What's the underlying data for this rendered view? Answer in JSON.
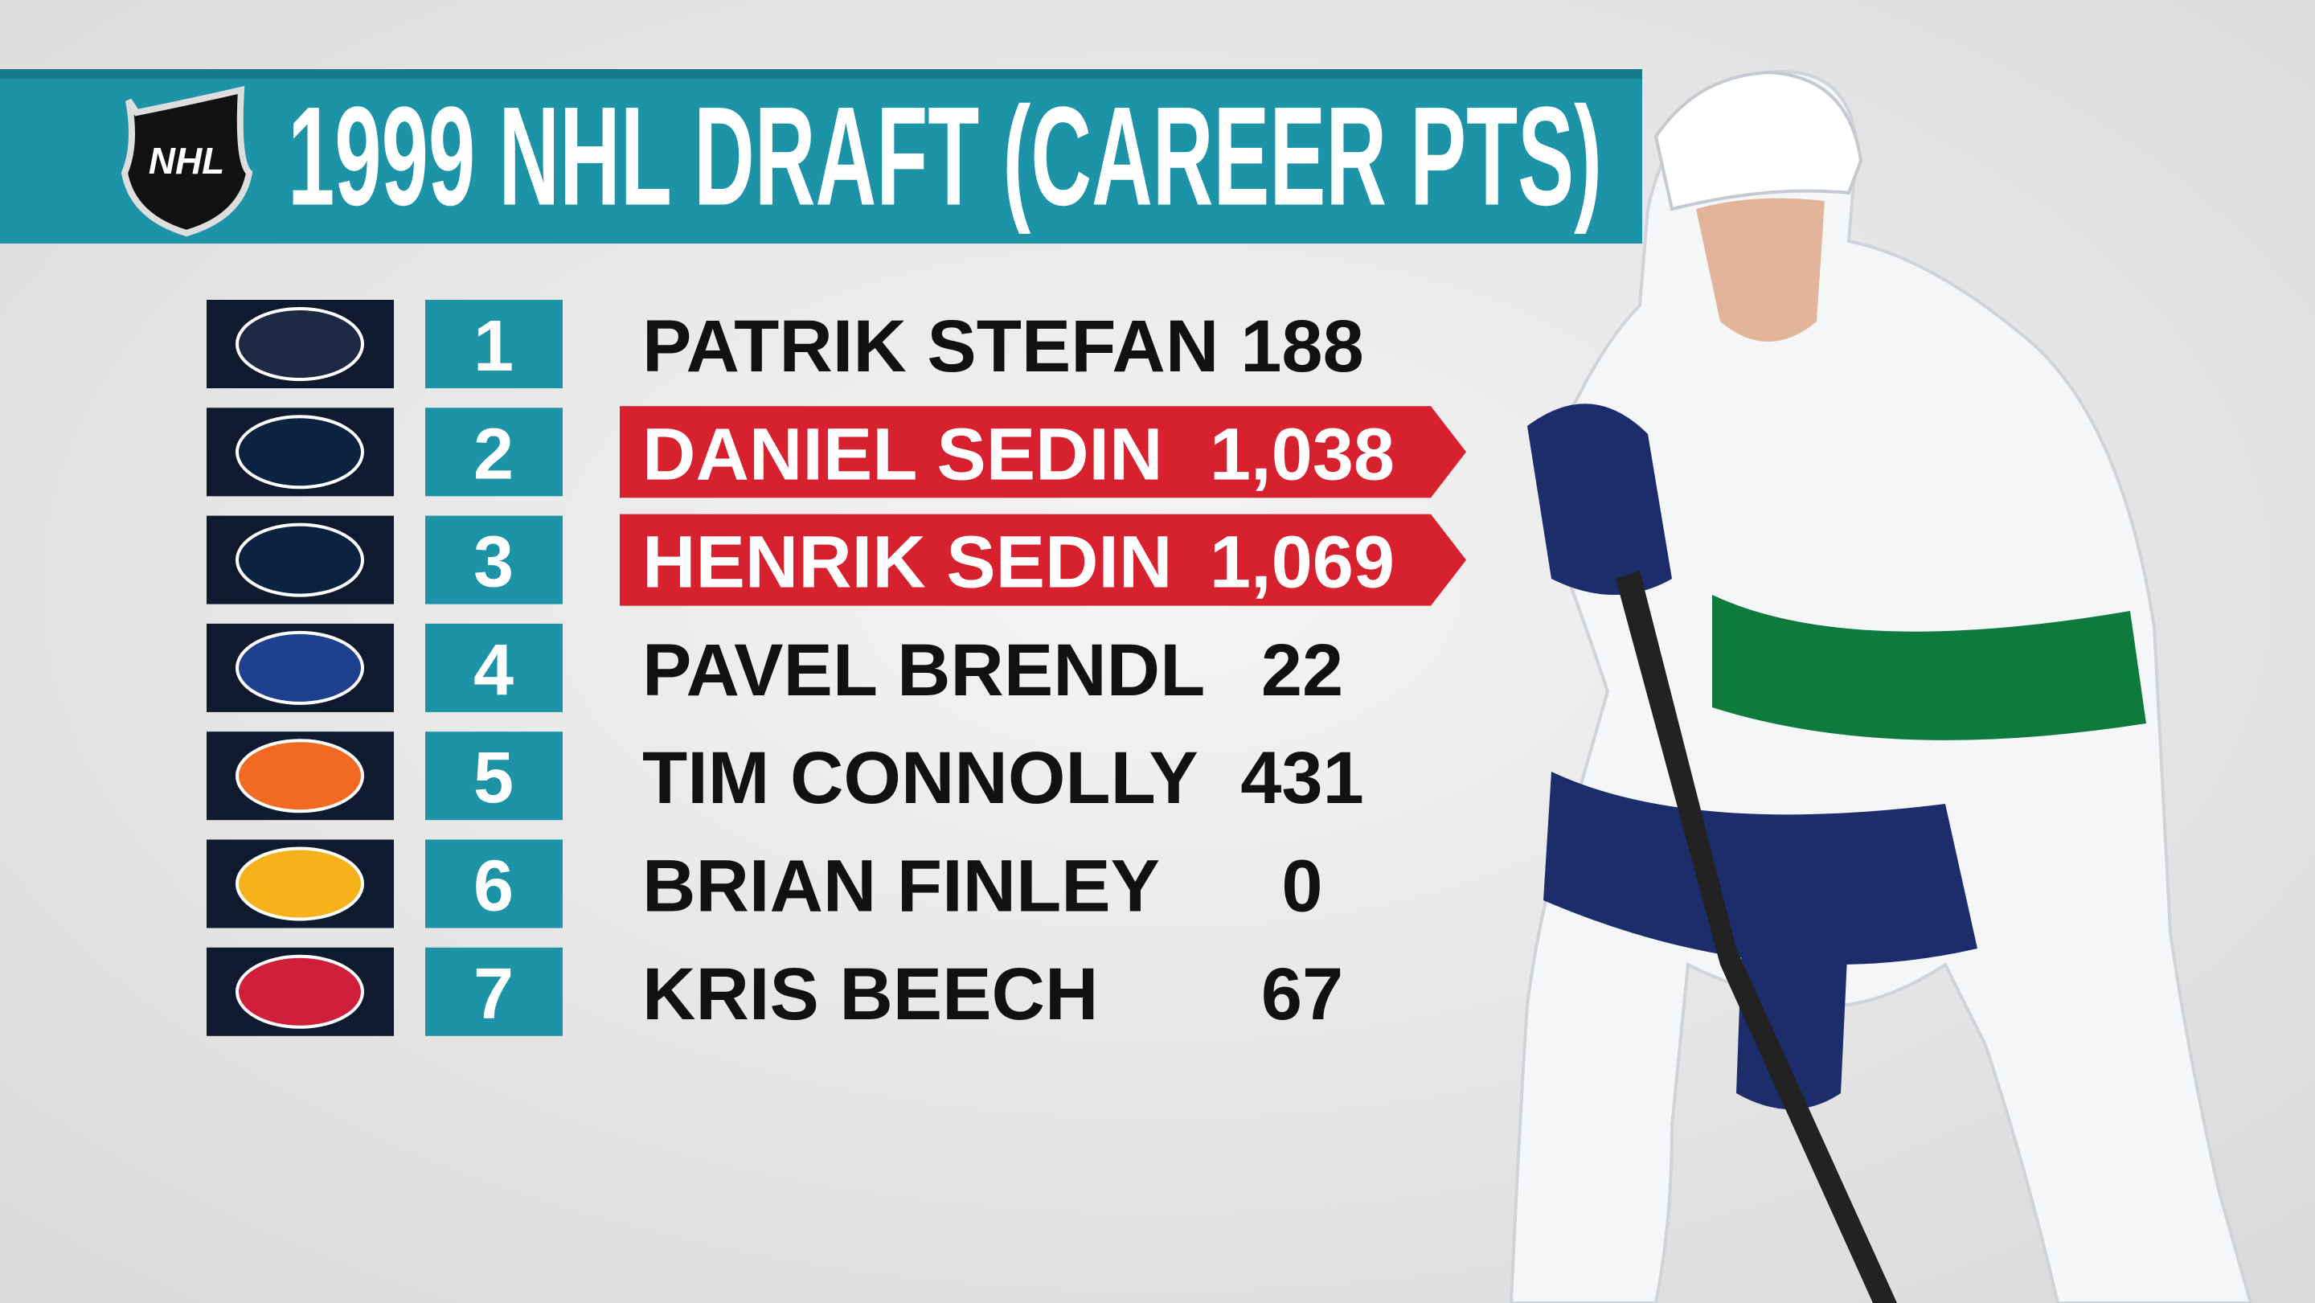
{
  "header": {
    "logo_text": "NHL",
    "title": "1999 NHL DRAFT (CAREER PTS)"
  },
  "table": {
    "highlight_color": "#d7212f",
    "pick_color": "#1d93a8",
    "rows": [
      {
        "pick": "1",
        "player": "PATRIK STEFAN",
        "points": "188",
        "highlight": false,
        "team_color": "#1e2a44"
      },
      {
        "pick": "2",
        "player": "DANIEL SEDIN",
        "points": "1,038",
        "highlight": true,
        "team_color": "#0b2340"
      },
      {
        "pick": "3",
        "player": "HENRIK SEDIN",
        "points": "1,069",
        "highlight": true,
        "team_color": "#0b2340"
      },
      {
        "pick": "4",
        "player": "PAVEL BRENDL",
        "points": "22",
        "highlight": false,
        "team_color": "#1f3f8f"
      },
      {
        "pick": "5",
        "player": "TIM CONNOLLY",
        "points": "431",
        "highlight": false,
        "team_color": "#f26924"
      },
      {
        "pick": "6",
        "player": "BRIAN FINLEY",
        "points": "0",
        "highlight": false,
        "team_color": "#f7b21b"
      },
      {
        "pick": "7",
        "player": "KRIS BEECH",
        "points": "67",
        "highlight": false,
        "team_color": "#cf1f3b"
      }
    ]
  }
}
